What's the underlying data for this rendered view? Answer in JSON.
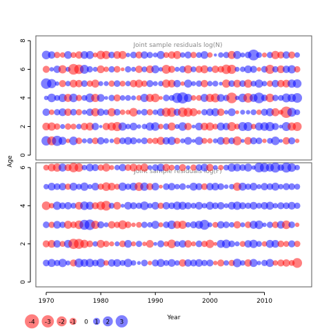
{
  "chart_data": [
    {
      "type": "bubble",
      "title": "Joint sample residuals log(N)",
      "x_range": [
        1970,
        2016
      ],
      "ylim": [
        0,
        8
      ],
      "y_ticks": [
        0,
        2,
        4,
        6,
        8
      ],
      "ages": [
        1,
        2,
        3,
        4,
        5,
        6,
        7
      ],
      "residuals": {
        "1": [
          1.8,
          -1.6,
          2.1,
          1.3,
          -0.4,
          1.5,
          -0.9,
          0.5,
          0.7,
          -0.9,
          1.1,
          0.6,
          0.4,
          -1.0,
          0.9,
          1.2,
          1.0,
          0.5,
          0.9,
          -0.7,
          -0.8,
          -1.3,
          1.1,
          1.4,
          -0.8,
          0.5,
          1.2,
          0.3,
          1.4,
          -0.7,
          -0.6,
          0.5,
          1.2,
          -1.1,
          0.9,
          -1.6,
          0.3,
          -1.2,
          1.0,
          0.9,
          -0.4,
          0.7,
          1.5,
          0.3,
          -1.1,
          1.0,
          -0.4
        ],
        "2": [
          -1.2,
          -1.4,
          -0.8,
          0.5,
          -0.8,
          -0.7,
          0.6,
          -1.1,
          -1.3,
          1.1,
          0.2,
          -1.1,
          -1.4,
          -1.7,
          1.4,
          0.6,
          1.2,
          0.4,
          0.6,
          1.4,
          1.5,
          -0.6,
          0.8,
          -1.3,
          0.5,
          1.5,
          -1.1,
          0.3,
          1.2,
          -1.2,
          -1.4,
          -0.7,
          1.3,
          1.1,
          -1.6,
          -0.7,
          1.6,
          1.6,
          -0.6,
          1.3,
          1.5,
          1.7,
          1.0,
          0.3,
          1.6,
          -1.4,
          -1.6
        ],
        "3": [
          1.1,
          -0.6,
          0.8,
          1.2,
          -1.1,
          0.9,
          -0.8,
          0.5,
          1.1,
          -1.4,
          1.1,
          0.7,
          -1.4,
          0.9,
          -0.6,
          -0.5,
          -1.5,
          0.5,
          0.9,
          -0.8,
          0.6,
          1.2,
          -1.6,
          -1.7,
          1.0,
          -1.8,
          -1.6,
          -1.3,
          -0.4,
          0.8,
          1.1,
          1.3,
          -1.1,
          0.4,
          1.2,
          -0.3,
          0.5,
          0.4,
          0.7,
          -0.6,
          1.0,
          1.3,
          -1.3,
          -0.5,
          -2.6,
          1.6,
          0.7
        ],
        "4": [
          0.4,
          1.5,
          0.7,
          1.4,
          -1.3,
          1.5,
          -0.8,
          0.7,
          1.6,
          -1.4,
          1.2,
          0.3,
          0.8,
          -1.0,
          0.6,
          0.7,
          0.5,
          -0.6,
          1.4,
          -1.3,
          -1.5,
          -0.3,
          0.9,
          0.7,
          2.1,
          2.5,
          1.4,
          -0.6,
          -0.7,
          1.3,
          -1.4,
          -1.6,
          1.2,
          0.8,
          -2.3,
          0.4,
          1.5,
          -1.8,
          1.3,
          2.3,
          0.9,
          -1.5,
          0.8,
          0.7,
          1.6,
          1.4,
          1.9
        ],
        "5": [
          2.2,
          1.7,
          0.4,
          -1.0,
          0.6,
          -1.2,
          -1.1,
          0.9,
          -0.8,
          -1.3,
          0.5,
          0.5,
          -0.8,
          0.9,
          -0.7,
          0.6,
          -1.1,
          -1.3,
          -0.8,
          1.0,
          0.5,
          0.6,
          -1.4,
          -1.2,
          1.1,
          -0.4,
          1.3,
          0.5,
          0.8,
          -1.1,
          0.6,
          0.7,
          0.3,
          -1.4,
          0.9,
          -1.2,
          0.9,
          -1.4,
          0.7,
          1.4,
          0.6,
          -0.8,
          1.1,
          -1.1,
          -1.2,
          1.4,
          1.5
        ],
        "6": [
          -1.0,
          0.4,
          1.1,
          -1.4,
          0.5,
          -2.3,
          -1.8,
          1.6,
          0.8,
          0.5,
          -1.2,
          -0.6,
          0.8,
          -0.9,
          -0.3,
          0.8,
          0.5,
          -1.1,
          0.7,
          -1.2,
          1.3,
          0.4,
          -1.6,
          -1.0,
          0.5,
          0.9,
          -1.4,
          0.7,
          -1.0,
          -1.3,
          0.6,
          -1.1,
          -0.9,
          -1.8,
          -1.7,
          0.5,
          0.6,
          1.2,
          1.0,
          -0.4,
          0.9,
          -1.7,
          0.8,
          -1.2,
          1.1,
          1.4,
          -0.8
        ],
        "7": [
          1.5,
          1.1,
          -0.8,
          -0.6,
          1.2,
          -0.7,
          -1.1,
          1.2,
          1.3,
          -0.5,
          -1.5,
          -1.4,
          0.9,
          -1.2,
          -1.3,
          0.4,
          0.9,
          -1.0,
          1.1,
          0.8,
          0.5,
          1.3,
          -0.7,
          -1.1,
          -1.3,
          0.6,
          1.0,
          -0.8,
          0.7,
          1.2,
          -0.6,
          0.2,
          0.6,
          0.8,
          -1.3,
          1.3,
          0.5,
          0.9,
          2.4,
          0.7,
          -0.5,
          0.8,
          -1.4,
          -1.0,
          1.1,
          -1.0,
          0.6
        ]
      }
    },
    {
      "type": "bubble",
      "title": "Joint sample residuals log(F)",
      "x_range": [
        1970,
        2016
      ],
      "ylim": [
        0,
        6
      ],
      "x_ticks": [
        1970,
        1980,
        1990,
        2000,
        2010
      ],
      "y_ticks": [
        0,
        2,
        4,
        6
      ],
      "xlabel": "Year",
      "ylabel": "Age",
      "ages": [
        1,
        2,
        3,
        4,
        5,
        6
      ],
      "residuals": {
        "1": [
          0.9,
          1.3,
          0.8,
          1.4,
          0.5,
          -1.0,
          1.6,
          1.2,
          1.4,
          0.9,
          1.5,
          -0.6,
          1.1,
          1.2,
          0.7,
          1.4,
          0.6,
          0.3,
          0.9,
          -0.4,
          1.0,
          1.3,
          0.7,
          1.2,
          0.6,
          -1.1,
          1.1,
          1.0,
          1.2,
          0.8,
          1.0,
          -0.4,
          -1.0,
          0.6,
          -0.8,
          1.5,
          0.6,
          -1.1,
          1.3,
          0.4,
          0.8,
          1.3,
          -0.6,
          -1.0,
          -1.1,
          -0.7,
          -1.9
        ],
        "2": [
          -1.0,
          -1.2,
          1.1,
          -0.7,
          1.3,
          -2.1,
          -2.0,
          -1.4,
          -0.9,
          0.6,
          -1.3,
          -0.8,
          -0.5,
          0.5,
          -0.9,
          1.2,
          -0.5,
          0.8,
          -0.4,
          -1.2,
          0.3,
          1.0,
          -0.6,
          -1.5,
          0.7,
          1.1,
          -1.1,
          -0.5,
          0.9,
          -0.8,
          -1.4,
          -0.3,
          1.3,
          1.5,
          0.9,
          0.5,
          -0.7,
          1.1,
          1.4,
          0.7,
          -0.6,
          1.3,
          1.2,
          -0.9,
          -0.7,
          1.0,
          -0.8
        ],
        "3": [
          0.9,
          -0.8,
          1.2,
          0.8,
          -1.3,
          -0.9,
          -1.5,
          2.0,
          2.2,
          -1.4,
          1.0,
          0.5,
          -1.1,
          -0.8,
          -1.6,
          -0.9,
          -0.4,
          -0.7,
          0.8,
          0.6,
          1.3,
          -0.5,
          0.9,
          1.5,
          -1.2,
          -1.4,
          0.6,
          1.0,
          1.3,
          2.0,
          0.5,
          -0.7,
          1.1,
          0.9,
          0.6,
          -1.1,
          0.5,
          -0.9,
          1.3,
          1.5,
          0.4,
          0.8,
          -0.9,
          1.2,
          -1.5,
          0.9,
          -0.4
        ],
        "4": [
          -1.5,
          -0.6,
          1.4,
          0.9,
          1.1,
          0.7,
          -1.2,
          1.5,
          1.3,
          -1.0,
          -1.5,
          -1.9,
          0.7,
          -1.2,
          0.3,
          1.2,
          1.0,
          0.8,
          1.5,
          0.6,
          1.2,
          -0.8,
          1.1,
          0.9,
          1.4,
          1.3,
          1.0,
          0.7,
          1.2,
          0.6,
          1.3,
          0.9,
          1.1,
          0.5,
          1.2,
          1.4,
          1.0,
          0.8,
          1.2,
          0.7,
          1.1,
          1.3,
          0.6,
          1.0,
          0.9,
          1.2,
          0.8
        ],
        "5": [
          0.6,
          1.2,
          0.9,
          1.1,
          -0.8,
          1.3,
          0.7,
          1.4,
          0.5,
          1.2,
          -0.8,
          -1.5,
          -1.2,
          -0.7,
          1.4,
          0.8,
          1.3,
          -1.5,
          1.4,
          -1.0,
          1.2,
          -0.3,
          0.9,
          1.1,
          0.6,
          0.9,
          0.3,
          1.3,
          1.0,
          -0.9,
          1.1,
          1.2,
          0.9,
          0.4,
          0.6,
          -1.4,
          1.3,
          0.8,
          1.2,
          0.5,
          1.1,
          0.9,
          1.3,
          0.6,
          1.0,
          0.9,
          0.7
        ],
        "6": [
          -0.7,
          -1.2,
          -1.4,
          1.3,
          -1.0,
          -1.8,
          -1.5,
          0.6,
          1.2,
          1.0,
          -0.8,
          -1.3,
          -0.5,
          0.6,
          1.1,
          -0.9,
          -1.2,
          -0.8,
          -1.3,
          0.5,
          0.9,
          1.2,
          -1.1,
          -0.7,
          0.6,
          -1.0,
          0.4,
          -0.8,
          0.9,
          1.2,
          -1.1,
          0.5,
          -0.6,
          0.7,
          1.4,
          1.2,
          0.9,
          1.3,
          0.4,
          1.9,
          1.7,
          1.3,
          2.0,
          0.9,
          2.0,
          1.5,
          0.6
        ]
      }
    }
  ],
  "legend": {
    "items": [
      {
        "label": "-4",
        "value": -4
      },
      {
        "label": "-3",
        "value": -3
      },
      {
        "label": "-2",
        "value": -2
      },
      {
        "label": "-1",
        "value": -1
      },
      {
        "label": "0",
        "value": 0
      },
      {
        "label": "1",
        "value": 1
      },
      {
        "label": "2",
        "value": 2
      },
      {
        "label": "3",
        "value": 3
      }
    ]
  },
  "colors": {
    "positive": "rgba(0,0,255,0.5)",
    "negative": "rgba(255,0,0,0.5)",
    "axis": "#000000",
    "frame": "#555555",
    "title": "#888888"
  }
}
